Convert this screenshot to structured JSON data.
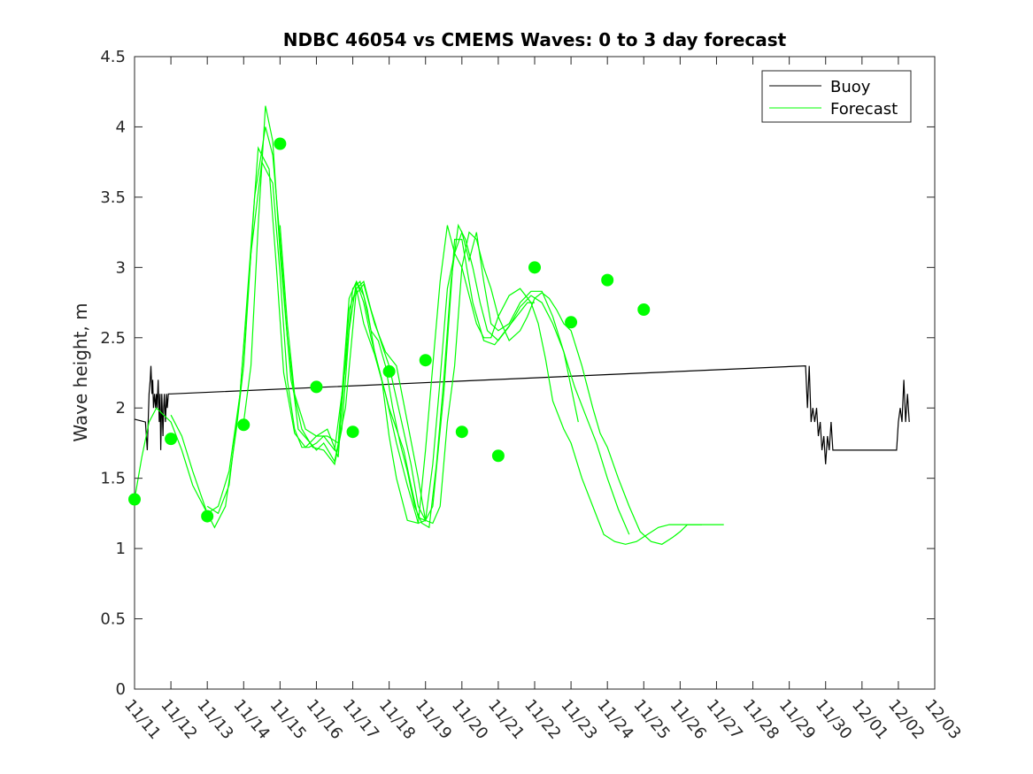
{
  "chart_data": {
    "type": "line",
    "title": "NDBC 46054 vs CMEMS Waves: 0 to 3 day forecast",
    "ylabel": "Wave height, m",
    "xlabel": "",
    "ylim": [
      0,
      4.5
    ],
    "yticks": [
      0,
      0.5,
      1,
      1.5,
      2,
      2.5,
      3,
      3.5,
      4,
      4.5
    ],
    "ytick_labels": [
      "0",
      "0.5",
      "1",
      "1.5",
      "2",
      "2.5",
      "3",
      "3.5",
      "4",
      "4.5"
    ],
    "xlim": [
      0,
      22
    ],
    "xtick_labels": [
      "11/11",
      "11/12",
      "11/13",
      "11/14",
      "11/15",
      "11/16",
      "11/17",
      "11/18",
      "11/19",
      "11/20",
      "11/21",
      "11/22",
      "11/23",
      "11/24",
      "11/25",
      "11/26",
      "11/27",
      "11/28",
      "11/29",
      "11/30",
      "12/01",
      "12/02",
      "12/03"
    ],
    "legend": {
      "position": "top-right",
      "entries": [
        "Buoy",
        "Forecast"
      ]
    },
    "colors": {
      "buoy": "#000000",
      "forecast": "#00ff00"
    },
    "series": [
      {
        "name": "Buoy",
        "color": "#000000",
        "x": [
          0,
          0.3,
          0.35,
          0.4,
          0.43,
          0.45,
          0.48,
          0.5,
          0.52,
          0.55,
          0.58,
          0.6,
          0.62,
          0.65,
          0.68,
          0.7,
          0.72,
          0.75,
          0.78,
          0.8,
          0.82,
          0.85,
          0.88,
          0.9,
          0.93,
          0.95,
          0.98,
          1.0,
          18.45,
          18.5,
          18.55,
          18.6,
          18.65,
          18.7,
          18.75,
          18.8,
          18.85,
          18.9,
          18.95,
          19.0,
          19.05,
          19.1,
          19.15,
          19.2,
          19.25,
          19.3,
          20.95,
          21.0,
          21.05,
          21.1,
          21.15,
          21.2,
          21.25,
          21.3
        ],
        "y": [
          1.92,
          1.9,
          1.7,
          2.1,
          2.2,
          2.3,
          2.1,
          2.2,
          2.0,
          2.1,
          2.0,
          2.1,
          2.0,
          2.2,
          1.9,
          2.1,
          1.7,
          2.1,
          1.8,
          2.0,
          2.1,
          1.9,
          2.1,
          2.0,
          2.1,
          2.1,
          2.1,
          2.1,
          2.3,
          2.0,
          2.3,
          1.9,
          2.0,
          1.9,
          2.0,
          1.8,
          1.9,
          1.7,
          1.8,
          1.6,
          1.8,
          1.7,
          1.9,
          1.7,
          1.7,
          1.7,
          1.7,
          1.9,
          2.0,
          1.9,
          2.2,
          1.9,
          2.1,
          1.9
        ]
      },
      {
        "name": "Forecast",
        "color": "#00ff00",
        "x": [
          0,
          0.2,
          0.4,
          0.6,
          0.8,
          1.0,
          1.3,
          1.6,
          2.0,
          2.3,
          2.6,
          2.9,
          3.2,
          3.5,
          3.8,
          4.0,
          4.2,
          4.4,
          4.6,
          4.8,
          5.0,
          5.2,
          5.5,
          5.8,
          6.0,
          6.2,
          6.4,
          6.6,
          6.8,
          7.0,
          7.2,
          7.4,
          7.6,
          7.8,
          8.0
        ],
        "y": [
          1.35,
          1.65,
          1.9,
          2.0,
          1.95,
          1.9,
          1.7,
          1.45,
          1.25,
          1.3,
          1.55,
          2.1,
          3.1,
          3.75,
          3.6,
          2.95,
          2.2,
          1.85,
          1.72,
          1.72,
          1.75,
          1.8,
          1.7,
          2.3,
          2.85,
          2.9,
          2.7,
          2.4,
          2.2,
          2.0,
          1.85,
          1.7,
          1.45,
          1.22,
          1.2
        ]
      },
      {
        "name": "",
        "color": "#00ff00",
        "x": [
          1.0,
          1.3,
          1.6,
          2.0,
          2.2,
          2.5,
          2.8,
          3.0,
          3.3,
          3.6,
          3.8,
          4.0,
          4.2,
          4.5,
          5.0,
          5.2,
          5.5,
          5.8,
          6.1,
          6.3,
          6.5,
          6.8,
          7.0,
          7.3,
          7.6,
          7.8,
          8.0,
          8.2,
          8.4,
          8.6,
          8.8,
          9.0,
          9.2,
          9.4,
          9.6,
          9.8,
          10.0,
          10.3,
          10.6,
          10.8,
          11.0,
          11.2,
          11.4,
          11.6,
          11.8,
          12.0,
          12.3,
          12.6,
          12.8,
          13.0,
          13.3,
          13.6,
          13.9,
          14.2,
          14.5,
          14.8,
          15.0,
          15.2,
          15.4,
          15.6
        ],
        "y": [
          1.95,
          1.8,
          1.55,
          1.25,
          1.15,
          1.3,
          1.85,
          2.3,
          3.5,
          4.0,
          3.8,
          3.2,
          2.5,
          1.85,
          1.7,
          1.75,
          1.62,
          2.0,
          2.85,
          2.9,
          2.7,
          2.45,
          2.3,
          1.95,
          1.6,
          1.3,
          1.2,
          1.18,
          1.3,
          1.9,
          2.3,
          3.0,
          3.25,
          3.2,
          3.0,
          2.85,
          2.65,
          2.48,
          2.55,
          2.65,
          2.78,
          2.82,
          2.78,
          2.7,
          2.6,
          2.55,
          2.3,
          2.0,
          1.82,
          1.72,
          1.5,
          1.3,
          1.12,
          1.05,
          1.03,
          1.08,
          1.12,
          1.17,
          1.17,
          1.17
        ]
      },
      {
        "name": "",
        "color": "#00ff00",
        "x": [
          2.0,
          2.3,
          2.6,
          2.9,
          3.1,
          3.4,
          3.7,
          3.9,
          4.1,
          4.4,
          4.7,
          5.0,
          5.3,
          5.6,
          5.9,
          6.1,
          6.3,
          6.6,
          6.9,
          7.2,
          7.5,
          7.8,
          8.0,
          8.2,
          8.4,
          8.6,
          8.8,
          9.0,
          9.2,
          9.4,
          9.6,
          9.8,
          10.0,
          10.3,
          10.6,
          10.9,
          11.1,
          11.3,
          11.5,
          11.8,
          12.0,
          12.3,
          12.6,
          12.9,
          13.2,
          13.5,
          13.8,
          14.1,
          14.4,
          14.7,
          15.0,
          15.3,
          15.6,
          15.8,
          16.0,
          16.2
        ],
        "y": [
          1.3,
          1.25,
          1.45,
          2.1,
          2.8,
          3.85,
          3.7,
          3.0,
          2.25,
          1.82,
          1.72,
          1.8,
          1.85,
          1.65,
          2.7,
          2.85,
          2.6,
          2.38,
          2.1,
          1.75,
          1.45,
          1.18,
          1.2,
          1.6,
          2.2,
          2.85,
          3.1,
          3.0,
          2.8,
          2.6,
          2.5,
          2.5,
          2.65,
          2.8,
          2.85,
          2.75,
          2.6,
          2.35,
          2.05,
          1.85,
          1.75,
          1.5,
          1.3,
          1.1,
          1.05,
          1.03,
          1.05,
          1.1,
          1.15,
          1.17,
          1.17,
          1.17,
          1.17,
          1.17,
          1.17,
          1.17
        ]
      },
      {
        "name": "",
        "color": "#00ff00",
        "x": [
          3.0,
          3.2,
          3.4,
          3.6,
          3.8,
          4.0,
          4.3,
          4.6,
          4.9,
          5.2,
          5.5,
          5.7,
          5.9,
          6.1,
          6.3,
          6.5,
          6.8,
          7.0,
          7.2,
          7.5,
          7.8,
          8.0,
          8.2,
          8.4,
          8.6,
          8.8,
          9.0,
          9.2,
          9.4,
          9.6,
          9.8,
          10.0,
          10.3,
          10.6,
          10.9,
          11.2,
          11.5,
          11.8,
          12.0,
          12.2
        ],
        "y": [
          1.9,
          2.3,
          3.3,
          4.15,
          3.9,
          3.1,
          2.2,
          1.85,
          1.72,
          1.7,
          1.6,
          1.85,
          2.55,
          2.9,
          2.75,
          2.5,
          2.2,
          1.8,
          1.5,
          1.2,
          1.18,
          1.7,
          2.3,
          2.9,
          3.3,
          3.1,
          3.25,
          3.05,
          3.25,
          2.9,
          2.6,
          2.55,
          2.6,
          2.75,
          2.83,
          2.83,
          2.65,
          2.4,
          2.15,
          1.9
        ]
      },
      {
        "name": "",
        "color": "#00ff00",
        "x": [
          4.0,
          4.2,
          4.4,
          4.7,
          5.0,
          5.3,
          5.6,
          5.9,
          6.1,
          6.3,
          6.5,
          6.7,
          6.9,
          7.1,
          7.3,
          7.5,
          7.7,
          7.9,
          8.1,
          8.3,
          8.5,
          8.7,
          8.9,
          9.1,
          9.3,
          9.5,
          9.7,
          10.0,
          10.3,
          10.6,
          10.9,
          11.2,
          11.5,
          11.8,
          12.1,
          12.4,
          12.7,
          13.0,
          13.3,
          13.6
        ],
        "y": [
          3.3,
          2.6,
          2.1,
          1.85,
          1.8,
          1.8,
          1.75,
          2.78,
          2.9,
          2.8,
          2.55,
          2.48,
          2.3,
          2.0,
          1.75,
          1.55,
          1.3,
          1.18,
          1.15,
          1.6,
          2.2,
          2.9,
          3.3,
          3.2,
          3.0,
          2.75,
          2.55,
          2.48,
          2.58,
          2.72,
          2.8,
          2.75,
          2.6,
          2.4,
          2.15,
          1.95,
          1.75,
          1.5,
          1.28,
          1.1
        ]
      },
      {
        "name": "",
        "color": "#00ff00",
        "x": [
          6.0,
          6.3,
          6.6,
          6.9,
          7.2,
          7.5,
          7.8,
          8.0,
          8.2,
          8.5,
          8.8,
          9.0,
          9.3,
          9.6,
          9.9,
          10.2,
          10.5,
          10.8,
          11.0
        ],
        "y": [
          2.78,
          2.88,
          2.6,
          2.4,
          2.3,
          1.9,
          1.5,
          1.2,
          1.3,
          2.1,
          3.2,
          3.2,
          2.75,
          2.48,
          2.45,
          2.55,
          2.65,
          2.75,
          2.75
        ]
      },
      {
        "name": "",
        "color": "#00ff00",
        "markers_only": true,
        "x": [
          0,
          1,
          2,
          3,
          4,
          5,
          6,
          7,
          8,
          9,
          10,
          11,
          12,
          13,
          14
        ],
        "y": [
          1.35,
          1.78,
          1.23,
          1.88,
          3.88,
          2.15,
          1.83,
          2.26,
          2.34,
          1.83,
          1.66,
          3.0,
          2.61,
          2.91,
          2.7
        ]
      }
    ]
  }
}
